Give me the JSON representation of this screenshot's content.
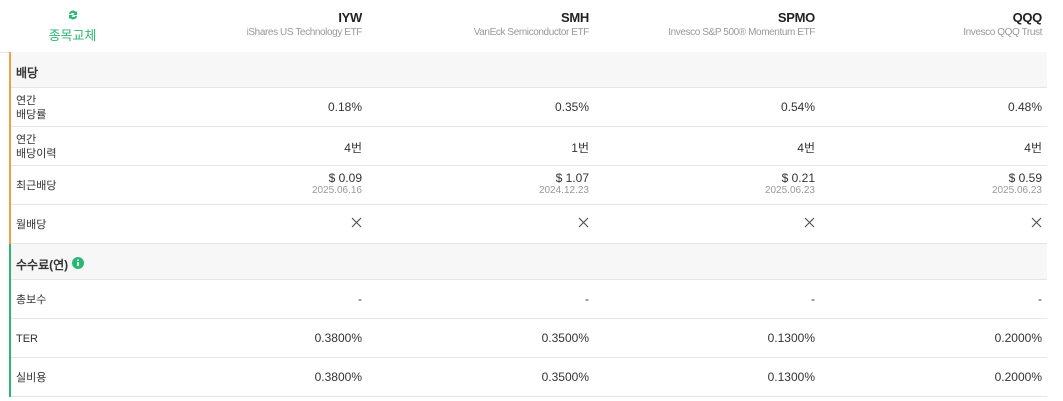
{
  "header": {
    "swap_label": "종목교체",
    "funds": [
      {
        "ticker": "IYW",
        "name": "iShares US Technology ETF"
      },
      {
        "ticker": "SMH",
        "name": "VanEck Semiconductor ETF"
      },
      {
        "ticker": "SPMO",
        "name": "Invesco S&P 500® Momentum ETF"
      },
      {
        "ticker": "QQQ",
        "name": "Invesco QQQ Trust"
      }
    ]
  },
  "sections": [
    {
      "title": "배당",
      "rows": [
        {
          "label": "연간\n배당률",
          "cells": [
            "0.18%",
            "0.35%",
            "0.54%",
            "0.48%"
          ]
        },
        {
          "label": "연간\n배당이력",
          "cells": [
            "4번",
            "1번",
            "4번",
            "4번"
          ]
        },
        {
          "label": "최근배당",
          "cells": [
            {
              "amount": "$ 0.09",
              "date": "2025.06.16"
            },
            {
              "amount": "$ 1.07",
              "date": "2024.12.23"
            },
            {
              "amount": "$ 0.21",
              "date": "2025.06.23"
            },
            {
              "amount": "$ 0.59",
              "date": "2025.06.23"
            }
          ]
        },
        {
          "label": "월배당",
          "cells": [
            false,
            false,
            false,
            false
          ]
        }
      ]
    },
    {
      "title": "수수료(연)",
      "info": true,
      "rows": [
        {
          "label": "총보수",
          "cells": [
            "-",
            "-",
            "-",
            "-"
          ]
        },
        {
          "label": "TER",
          "cells": [
            "0.3800%",
            "0.3500%",
            "0.1300%",
            "0.2000%"
          ]
        },
        {
          "label": "실비용",
          "cells": [
            "0.3800%",
            "0.3500%",
            "0.1300%",
            "0.2000%"
          ]
        }
      ]
    }
  ]
}
